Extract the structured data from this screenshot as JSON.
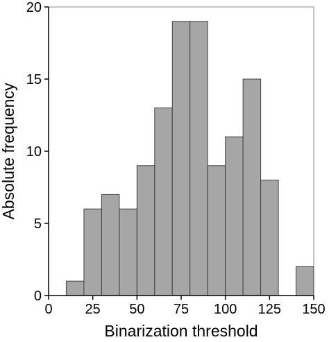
{
  "chart_data": {
    "type": "bar",
    "title": "",
    "xlabel": "Binarization threshold",
    "ylabel": "Absolute frequency",
    "xlim": [
      0,
      150
    ],
    "ylim": [
      0,
      20
    ],
    "bin_width": 10,
    "bins": [
      {
        "start": 10,
        "end": 20,
        "value": 1
      },
      {
        "start": 20,
        "end": 30,
        "value": 6
      },
      {
        "start": 30,
        "end": 40,
        "value": 7
      },
      {
        "start": 40,
        "end": 50,
        "value": 6
      },
      {
        "start": 50,
        "end": 60,
        "value": 9
      },
      {
        "start": 60,
        "end": 70,
        "value": 13
      },
      {
        "start": 70,
        "end": 80,
        "value": 19
      },
      {
        "start": 80,
        "end": 90,
        "value": 19
      },
      {
        "start": 90,
        "end": 100,
        "value": 9
      },
      {
        "start": 100,
        "end": 110,
        "value": 11
      },
      {
        "start": 110,
        "end": 120,
        "value": 15
      },
      {
        "start": 120,
        "end": 130,
        "value": 8
      },
      {
        "start": 140,
        "end": 150,
        "value": 2
      }
    ],
    "x_ticks": [
      "0",
      "25",
      "50",
      "75",
      "100",
      "125",
      "150"
    ],
    "y_ticks": [
      "0",
      "5",
      "10",
      "15",
      "20"
    ],
    "grid": false,
    "colors": {
      "bar_fill": "#a6a6a6",
      "bar_stroke": "#404040"
    }
  }
}
